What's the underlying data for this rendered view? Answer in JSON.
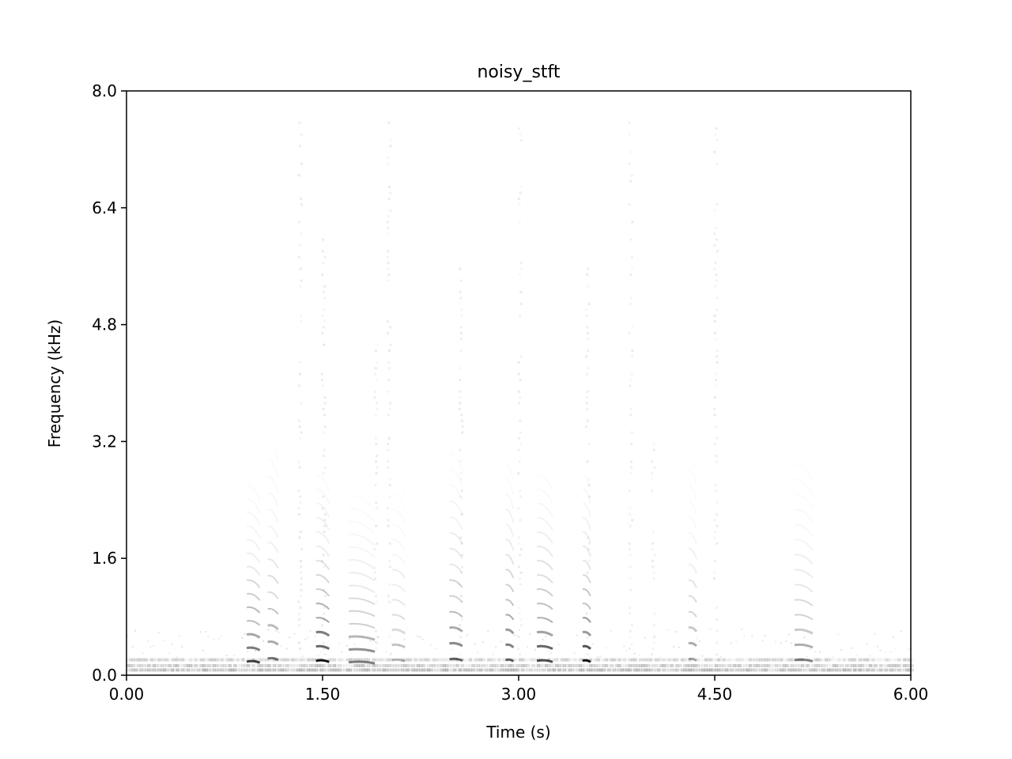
{
  "chart_data": {
    "type": "heatmap",
    "subtype": "spectrogram",
    "title": "noisy_stft",
    "xlabel": "Time (s)",
    "ylabel": "Frequency (kHz)",
    "xlim": [
      0,
      6
    ],
    "ylim": [
      0,
      8
    ],
    "xticks": [
      "0.00",
      "1.50",
      "3.00",
      "4.50",
      "6.00"
    ],
    "yticks": [
      "0.0",
      "1.6",
      "3.2",
      "4.8",
      "6.4",
      "8.0"
    ],
    "colormap": "Greys",
    "grid": false,
    "segments": [
      {
        "t": 0.97,
        "dur": 0.1,
        "pitch_hz": 180,
        "intensity": 0.85
      },
      {
        "t": 1.12,
        "dur": 0.08,
        "pitch_hz": 220,
        "intensity": 0.55
      },
      {
        "t": 1.5,
        "dur": 0.1,
        "pitch_hz": 190,
        "intensity": 0.95
      },
      {
        "t": 1.8,
        "dur": 0.2,
        "pitch_hz": 170,
        "intensity": 0.6
      },
      {
        "t": 2.08,
        "dur": 0.1,
        "pitch_hz": 200,
        "intensity": 0.35
      },
      {
        "t": 2.52,
        "dur": 0.1,
        "pitch_hz": 210,
        "intensity": 0.7
      },
      {
        "t": 2.93,
        "dur": 0.06,
        "pitch_hz": 200,
        "intensity": 0.85
      },
      {
        "t": 3.2,
        "dur": 0.12,
        "pitch_hz": 190,
        "intensity": 0.9
      },
      {
        "t": 3.52,
        "dur": 0.06,
        "pitch_hz": 190,
        "intensity": 0.95
      },
      {
        "t": 4.33,
        "dur": 0.06,
        "pitch_hz": 210,
        "intensity": 0.45
      },
      {
        "t": 5.18,
        "dur": 0.14,
        "pitch_hz": 200,
        "intensity": 0.5
      }
    ]
  }
}
